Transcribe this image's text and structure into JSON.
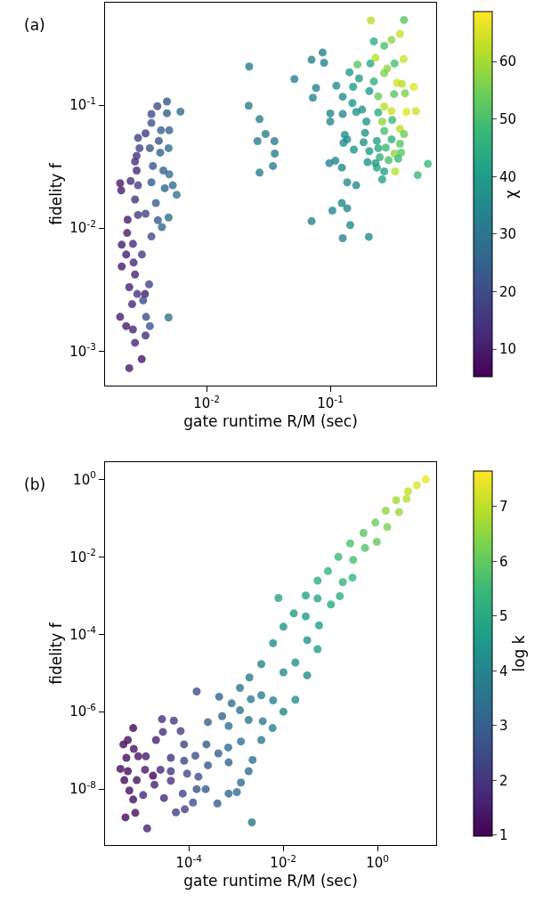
{
  "chart_data": [
    {
      "type": "scatter",
      "annotations": [
        "(a)"
      ],
      "xlabel": "gate runtime R/M (sec)",
      "ylabel": "fidelity f",
      "clabel": "χ",
      "log": "xy",
      "xlim": [
        0.00151,
        0.718
      ],
      "ylim": [
        0.000525,
        0.681
      ],
      "xticks": [
        {
          "value": 0.01,
          "label": "10$^{-2}$"
        },
        {
          "value": 0.1,
          "label": "10$^{-1}$"
        }
      ],
      "yticks": [
        {
          "value": 0.001,
          "label": "10$^{-3}$"
        },
        {
          "value": 0.01,
          "label": "10$^{-2}$"
        },
        {
          "value": 0.1,
          "label": "10$^{-1}$"
        }
      ],
      "clim": [
        5.2,
        68.7
      ],
      "cticks": [
        10,
        20,
        30,
        40,
        50,
        60
      ],
      "series": [
        {
          "x": [
            0.00478,
            0.004,
            0.00358,
            0.00615,
            0.00478,
            0.00358,
            0.00428,
            0.00499,
            0.00279,
            0.00321,
            0.00411,
            0.00287,
            0.00493,
            0.00348,
            0.00272,
            0.00422,
            0.00264,
            0.00368,
            0.00272,
            0.00447,
            0.00499,
            0.002,
            0.00204,
            0.00243,
            0.00279,
            0.00358,
            0.00459,
            0.00533,
            0.00573,
            0.00264,
            0.00389,
            0.0023,
            0.00279,
            0.00321,
            0.00404,
            0.00493,
            0.00435,
            0.00206,
            0.00228,
            0.00254,
            0.003,
            0.00358,
            0.00224,
            0.00257,
            0.00206,
            0.00264,
            0.00343,
            0.00237,
            0.00275,
            0.00318,
            0.00307,
            0.0025,
            0.002,
            0.00224,
            0.00254,
            0.00324,
            0.00348,
            0.00493,
            0.00321,
            0.00264,
            0.00299,
            0.00237,
            0.0221,
            0.0219,
            0.0268,
            0.03,
            0.0258,
            0.0354,
            0.0356,
            0.0344,
            0.0268,
            0.0513,
            0.0706,
            0.0867,
            0.0891,
            0.0767,
            0.0723,
            0.112,
            0.126,
            0.1,
            0.1,
            0.126,
            0.151,
            0.143,
            0.153,
            0.171,
            0.166,
            0.225,
            0.213,
            0.395,
            0.366,
            0.313,
            0.273,
            0.232,
            0.211,
            0.391,
            0.288,
            0.331,
            0.273,
            0.225,
            0.347,
            0.474,
            0.38,
            0.207,
            0.244,
            0.328,
            0.402,
            0.273,
            0.413,
            0.493,
            0.313,
            0.181,
            0.244,
            0.162,
            0.196,
            0.263,
            0.317,
            0.366,
            0.273,
            0.191,
            0.395,
            0.131,
            0.137,
            0.128,
            0.186,
            0.238,
            0.313,
            0.366,
            0.155,
            0.207,
            0.244,
            0.281,
            0.331,
            0.374,
            0.251,
            0.296,
            0.354,
            0.2,
            0.0984,
            0.11,
            0.124,
            0.232,
            0.238,
            0.273,
            0.335,
            0.263,
            0.615,
            0.509,
            0.137,
            0.162,
            0.124,
            0.137,
            0.104,
            0.0706,
            0.145,
            0.126,
            0.205
          ],
          "values": [
            0.107,
            0.098,
            0.0847,
            0.0885,
            0.086,
            0.0716,
            0.0624,
            0.0624,
            0.0542,
            0.059,
            0.0513,
            0.0447,
            0.0447,
            0.0447,
            0.0388,
            0.0411,
            0.0348,
            0.032,
            0.0294,
            0.0294,
            0.0274,
            0.0232,
            0.0203,
            0.0242,
            0.0223,
            0.0236,
            0.0211,
            0.0223,
            0.0187,
            0.0171,
            0.016,
            0.0117,
            0.0128,
            0.0131,
            0.0116,
            0.0122,
            0.0102,
            0.00733,
            0.00914,
            0.00745,
            0.0061,
            0.00855,
            0.0061,
            0.00525,
            0.00488,
            0.0042,
            0.00349,
            0.00331,
            0.00292,
            0.00292,
            0.00259,
            0.00241,
            0.0019,
            0.0016,
            0.0015,
            0.0019,
            0.0016,
            0.00188,
            0.00134,
            0.00117,
            0.000861,
            0.000728,
            0.206,
            0.0989,
            0.0769,
            0.0583,
            0.051,
            0.051,
            0.0404,
            0.032,
            0.0283,
            0.163,
            0.234,
            0.268,
            0.221,
            0.138,
            0.115,
            0.144,
            0.117,
            0.0856,
            0.0736,
            0.0847,
            0.104,
            0.185,
            0.141,
            0.165,
            0.214,
            0.33,
            0.488,
            0.493,
            0.38,
            0.34,
            0.304,
            0.243,
            0.218,
            0.237,
            0.198,
            0.218,
            0.182,
            0.156,
            0.152,
            0.141,
            0.149,
            0.13,
            0.118,
            0.123,
            0.125,
            0.0973,
            0.088,
            0.0895,
            0.0895,
            0.092,
            0.0871,
            0.088,
            0.0736,
            0.0736,
            0.0757,
            0.0641,
            0.0617,
            0.0596,
            0.0583,
            0.0573,
            0.0527,
            0.0493,
            0.0499,
            0.0513,
            0.0527,
            0.0485,
            0.0435,
            0.0423,
            0.0447,
            0.0452,
            0.0404,
            0.0411,
            0.0377,
            0.0357,
            0.0367,
            0.0344,
            0.0338,
            0.0353,
            0.0311,
            0.0338,
            0.0311,
            0.0289,
            0.0289,
            0.0249,
            0.0333,
            0.027,
            0.0236,
            0.0223,
            0.016,
            0.0145,
            0.0139,
            0.0114,
            0.0106,
            0.00828,
            0.00851
          ],
          "cvalues": [
            22,
            20,
            20,
            28,
            24,
            22,
            25,
            25,
            18,
            16,
            22,
            18,
            28,
            22,
            15,
            25,
            14,
            22,
            12,
            25,
            28,
            10,
            10,
            14,
            17,
            24,
            26,
            28,
            30,
            15,
            24,
            10,
            16,
            18,
            24,
            28,
            26,
            10,
            10,
            13,
            16,
            20,
            10,
            12,
            10,
            12,
            18,
            11,
            15,
            11,
            20,
            12,
            10,
            10,
            12,
            20,
            22,
            30,
            14,
            12,
            9,
            10,
            32,
            32,
            32,
            32,
            32,
            32,
            32,
            32,
            32,
            33,
            33,
            33,
            34,
            34,
            34,
            36,
            37,
            35,
            35,
            35,
            38,
            40,
            40,
            40,
            52,
            45,
            62,
            52,
            64,
            58,
            50,
            62,
            44,
            64,
            58,
            50,
            56,
            46,
            64,
            66,
            62,
            40,
            54,
            52,
            56,
            62,
            66,
            64,
            64,
            38,
            44,
            38,
            38,
            58,
            48,
            62,
            50,
            38,
            54,
            36,
            38,
            36,
            38,
            42,
            46,
            52,
            38,
            40,
            44,
            48,
            58,
            52,
            46,
            50,
            48,
            38,
            34,
            34,
            35,
            40,
            42,
            42,
            62,
            42,
            48,
            48,
            36,
            36,
            34,
            34,
            34,
            34,
            36,
            34,
            36
          ]
        }
      ]
    },
    {
      "type": "scatter",
      "annotations": [
        "(b)"
      ],
      "xlabel": "gate runtime R/M (sec)",
      "ylabel": "fidelity f",
      "clabel": "log k",
      "log": "xy",
      "xlim": [
        1.66e-06,
        17.6
      ],
      "ylim": [
        3.58e-10,
        2.79
      ],
      "xticks": [
        {
          "value": 0.0001,
          "label": "10$^{-4}$"
        },
        {
          "value": 0.01,
          "label": "10$^{-2}$"
        },
        {
          "value": 1,
          "label": "10$^{0}$"
        }
      ],
      "yticks": [
        {
          "value": 1e-08,
          "label": "10$^{-8}$"
        },
        {
          "value": 1e-06,
          "label": "10$^{-6}$"
        },
        {
          "value": 0.0001,
          "label": "10$^{-4}$"
        },
        {
          "value": 0.01,
          "label": "10$^{-2}$"
        },
        {
          "value": 1,
          "label": "10$^{0}$"
        }
      ],
      "clim": [
        0.98,
        7.65
      ],
      "cticks": [
        1,
        2,
        3,
        4,
        5,
        6,
        7
      ],
      "series": [
        {
          "x": [
            10.6,
            6.85,
            4.45,
            4.13,
            2.49,
            2.88,
            1.5,
            1.61,
            0.904,
            0.971,
            0.506,
            0.544,
            0.264,
            0.305,
            0.148,
            0.296,
            0.184,
            0.0891,
            0.159,
            0.0537,
            0.103,
            0.0537,
            0.0301,
            0.0577,
            0.00793,
            0.0301,
            0.0168,
            0.0101,
            0.0323,
            0.0537,
            0.00611,
            0.0181,
            0.0323,
            0.00343,
            0.00192,
            0.0101,
            0.00121,
            0.00611,
            0.0181,
            0.0101,
            0.00343,
            0.00206,
            0.000805,
            0.00121,
            0.000438,
            0.000146,
            0.00185,
            0.00368,
            0.00595,
            0.000696,
            0.000506,
            0.000253,
            0.00343,
            0.00127,
            0.000682,
            0.00224,
            0.00185,
            0.00127,
            0.000696,
            0.00104,
            0.00216,
            0.000402,
            0.000227,
            0.000146,
            0.000122,
            8.17e-05,
            5.29e-05,
            7.38e-05,
            0.000696,
            0.000421,
            0.000253,
            0.000235,
            0.000137,
            7.92e-05,
            9.16e-05,
            0.000159,
            7.87e-05,
            6.67e-05,
            4.78e-05,
            2.68e-05,
            2.8e-05,
            4.13e-05,
            4.13e-05,
            2.96e-05,
            1.86e-05,
            1.73e-05,
            1.17e-05,
            2e-05,
            1.22e-05,
            6.57e-06,
            5.06e-06,
            4.07e-06,
            6.76e-06,
            4.71e-06,
            8.41e-06,
            3.52e-06,
            5.06e-06,
            4.26e-06,
            7.82e-06,
            5.45e-06,
            6.57e-06,
            4.51e-06,
            7.28e-06,
            1.3e-05,
            1.07e-05,
            2.49e-05,
            4.13e-05
          ],
          "values": [
            1.0,
            0.702,
            0.492,
            0.316,
            0.29,
            0.143,
            0.156,
            0.0588,
            0.0767,
            0.0243,
            0.0413,
            0.017,
            0.0222,
            0.00838,
            0.01,
            0.0029,
            0.00222,
            0.00428,
            0.000966,
            0.00243,
            0.000588,
            0.000838,
            0.001,
            0.00017,
            0.000867,
            0.00029,
            0.000345,
            0.000156,
            7.02e-05,
            4.12e-05,
            5.88e-05,
            1.86e-05,
            8.67e-06,
            1.7e-05,
            7.67e-06,
            1.04e-05,
            4.12e-06,
            1.96e-06,
            2.03e-06,
            1e-06,
            2.65e-06,
            2.1e-06,
            1.64e-06,
            1.09e-06,
            2.43e-06,
            3.33e-06,
            6.1e-07,
            5.67e-07,
            3.78e-07,
            4.27e-07,
            7.67e-07,
            5.38e-07,
            1.86e-07,
            1.7e-07,
            1.19e-07,
            5.67e-08,
            2.9e-08,
            1.48e-08,
            7.67e-09,
            8.38e-09,
            1.38e-09,
            4.27e-09,
            1e-08,
            1e-08,
            4.5e-09,
            3e-09,
            2.51e-09,
            7.67e-09,
            4.92e-08,
            8.38e-08,
            4.12e-08,
            1.43e-07,
            7.27e-08,
            5.38e-08,
            2.51e-08,
            2.1e-08,
            1.43e-07,
            3.16e-07,
            5.88e-07,
            6.42e-07,
            3e-07,
            6.42e-08,
            1.64e-08,
            5.88e-09,
            1.3e-08,
            2.22e-08,
            3.16e-08,
            1.86e-07,
            7.02e-08,
            3.78e-07,
            1.86e-07,
            1.43e-07,
            1.09e-07,
            6.42e-08,
            7.02e-08,
            3.33e-08,
            2.9e-08,
            1.7e-08,
            1.7e-08,
            9.16e-09,
            5.38e-09,
            1.86e-09,
            2.43e-09,
            9.66e-10,
            7.02e-09,
            3.16e-08,
            2.9e-08
          ],
          "cvalues": [
            7.5,
            7.3,
            7.0,
            6.9,
            6.7,
            6.6,
            6.5,
            6.3,
            6.1,
            6.0,
            5.9,
            5.8,
            5.7,
            5.6,
            5.5,
            5.4,
            5.3,
            5.3,
            5.1,
            5.1,
            5.0,
            4.9,
            4.8,
            4.7,
            4.9,
            4.6,
            4.6,
            4.4,
            4.4,
            4.7,
            4.2,
            4.3,
            4.3,
            4.0,
            3.8,
            4.1,
            3.7,
            4.0,
            4.2,
            4.0,
            3.9,
            3.7,
            3.5,
            3.5,
            3.1,
            2.6,
            3.6,
            3.8,
            3.9,
            3.4,
            3.1,
            3.0,
            3.7,
            3.5,
            3.3,
            3.5,
            3.4,
            3.3,
            3.2,
            3.3,
            3.6,
            3.0,
            2.9,
            2.7,
            2.6,
            2.3,
            2.2,
            2.4,
            3.1,
            3.0,
            2.8,
            2.9,
            2.6,
            2.4,
            2.5,
            2.6,
            2.3,
            2.2,
            2.1,
            1.9,
            1.9,
            2.0,
            2.0,
            1.8,
            1.6,
            1.0,
            1.5,
            1.6,
            1.5,
            1.1,
            1.2,
            1.1,
            1.3,
            1.2,
            1.3,
            1.2,
            1.2,
            1.1,
            1.3,
            1.2,
            1.2,
            1.1,
            1.2,
            1.6,
            1.7,
            1.7,
            2.0
          ]
        }
      ]
    }
  ]
}
